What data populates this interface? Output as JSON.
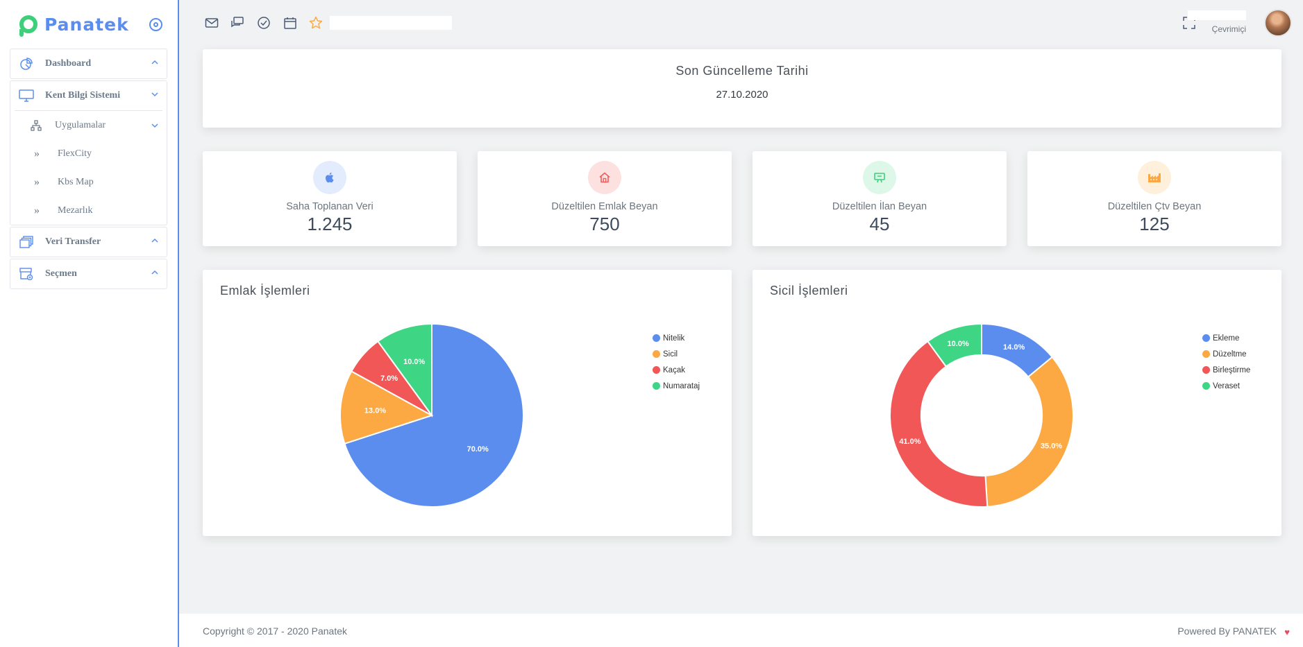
{
  "brand": {
    "name": "Panatek"
  },
  "sidebar": {
    "items": [
      {
        "label": "Dashboard",
        "icon": "chart-pie-icon"
      },
      {
        "label": "Kent Bilgi Sistemi",
        "icon": "monitor-icon"
      },
      {
        "label": "Uygulamalar",
        "icon": "sitemap-icon"
      },
      {
        "label": "FlexCity"
      },
      {
        "label": "Kbs Map"
      },
      {
        "label": "Mezarlık"
      },
      {
        "label": "Veri Transfer",
        "icon": "layers-icon"
      },
      {
        "label": "Seçmen",
        "icon": "archive-icon"
      }
    ]
  },
  "topbar": {
    "icons": [
      "mail-icon",
      "chat-icon",
      "check-circle-icon",
      "calendar-icon",
      "star-icon"
    ],
    "status": "Çevrimiçi"
  },
  "update": {
    "title": "Son Güncelleme Tarihi",
    "date": "27.10.2020"
  },
  "stats": [
    {
      "label": "Saha Toplanan Veri",
      "value": "1.245",
      "icon": "apple-icon",
      "color": "#5b8def",
      "bg": "#e3ecfc"
    },
    {
      "label": "Düzeltilen Emlak Beyan",
      "value": "750",
      "icon": "home-icon",
      "color": "#f05b5b",
      "bg": "#fde1e1"
    },
    {
      "label": "Düzeltilen İlan Beyan",
      "value": "45",
      "icon": "billboard-icon",
      "color": "#3ecf7a",
      "bg": "#ddf7e8"
    },
    {
      "label": "Düzeltilen Çtv Beyan",
      "value": "125",
      "icon": "factory-icon",
      "color": "#fca944",
      "bg": "#fff0dc"
    }
  ],
  "chart_data": [
    {
      "type": "pie",
      "title": "Emlak İşlemleri",
      "categories": [
        "Nitelik",
        "Sicil",
        "Kaçak",
        "Numarataj"
      ],
      "values": [
        70.0,
        13.0,
        7.0,
        10.0
      ],
      "labels": [
        "70.0%",
        "13.0%",
        "7.0%",
        "10.0%"
      ],
      "colors": [
        "#5b8def",
        "#fca944",
        "#f25757",
        "#3ed684"
      ],
      "legend": "top-right"
    },
    {
      "type": "donut",
      "title": "Sicil İşlemleri",
      "categories": [
        "Ekleme",
        "Düzeltme",
        "Birleştirme",
        "Veraset"
      ],
      "values": [
        14.0,
        35.0,
        41.0,
        10.0
      ],
      "labels": [
        "14.0%",
        "35.0%",
        "41.0%",
        "10.0%"
      ],
      "colors": [
        "#5b8def",
        "#fca944",
        "#f25757",
        "#3ed684"
      ],
      "legend": "top-right"
    }
  ],
  "footer": {
    "copyright": "Copyright © 2017 - 2020  Panatek",
    "powered": "Powered By  PANATEK",
    "heart": "♥"
  }
}
